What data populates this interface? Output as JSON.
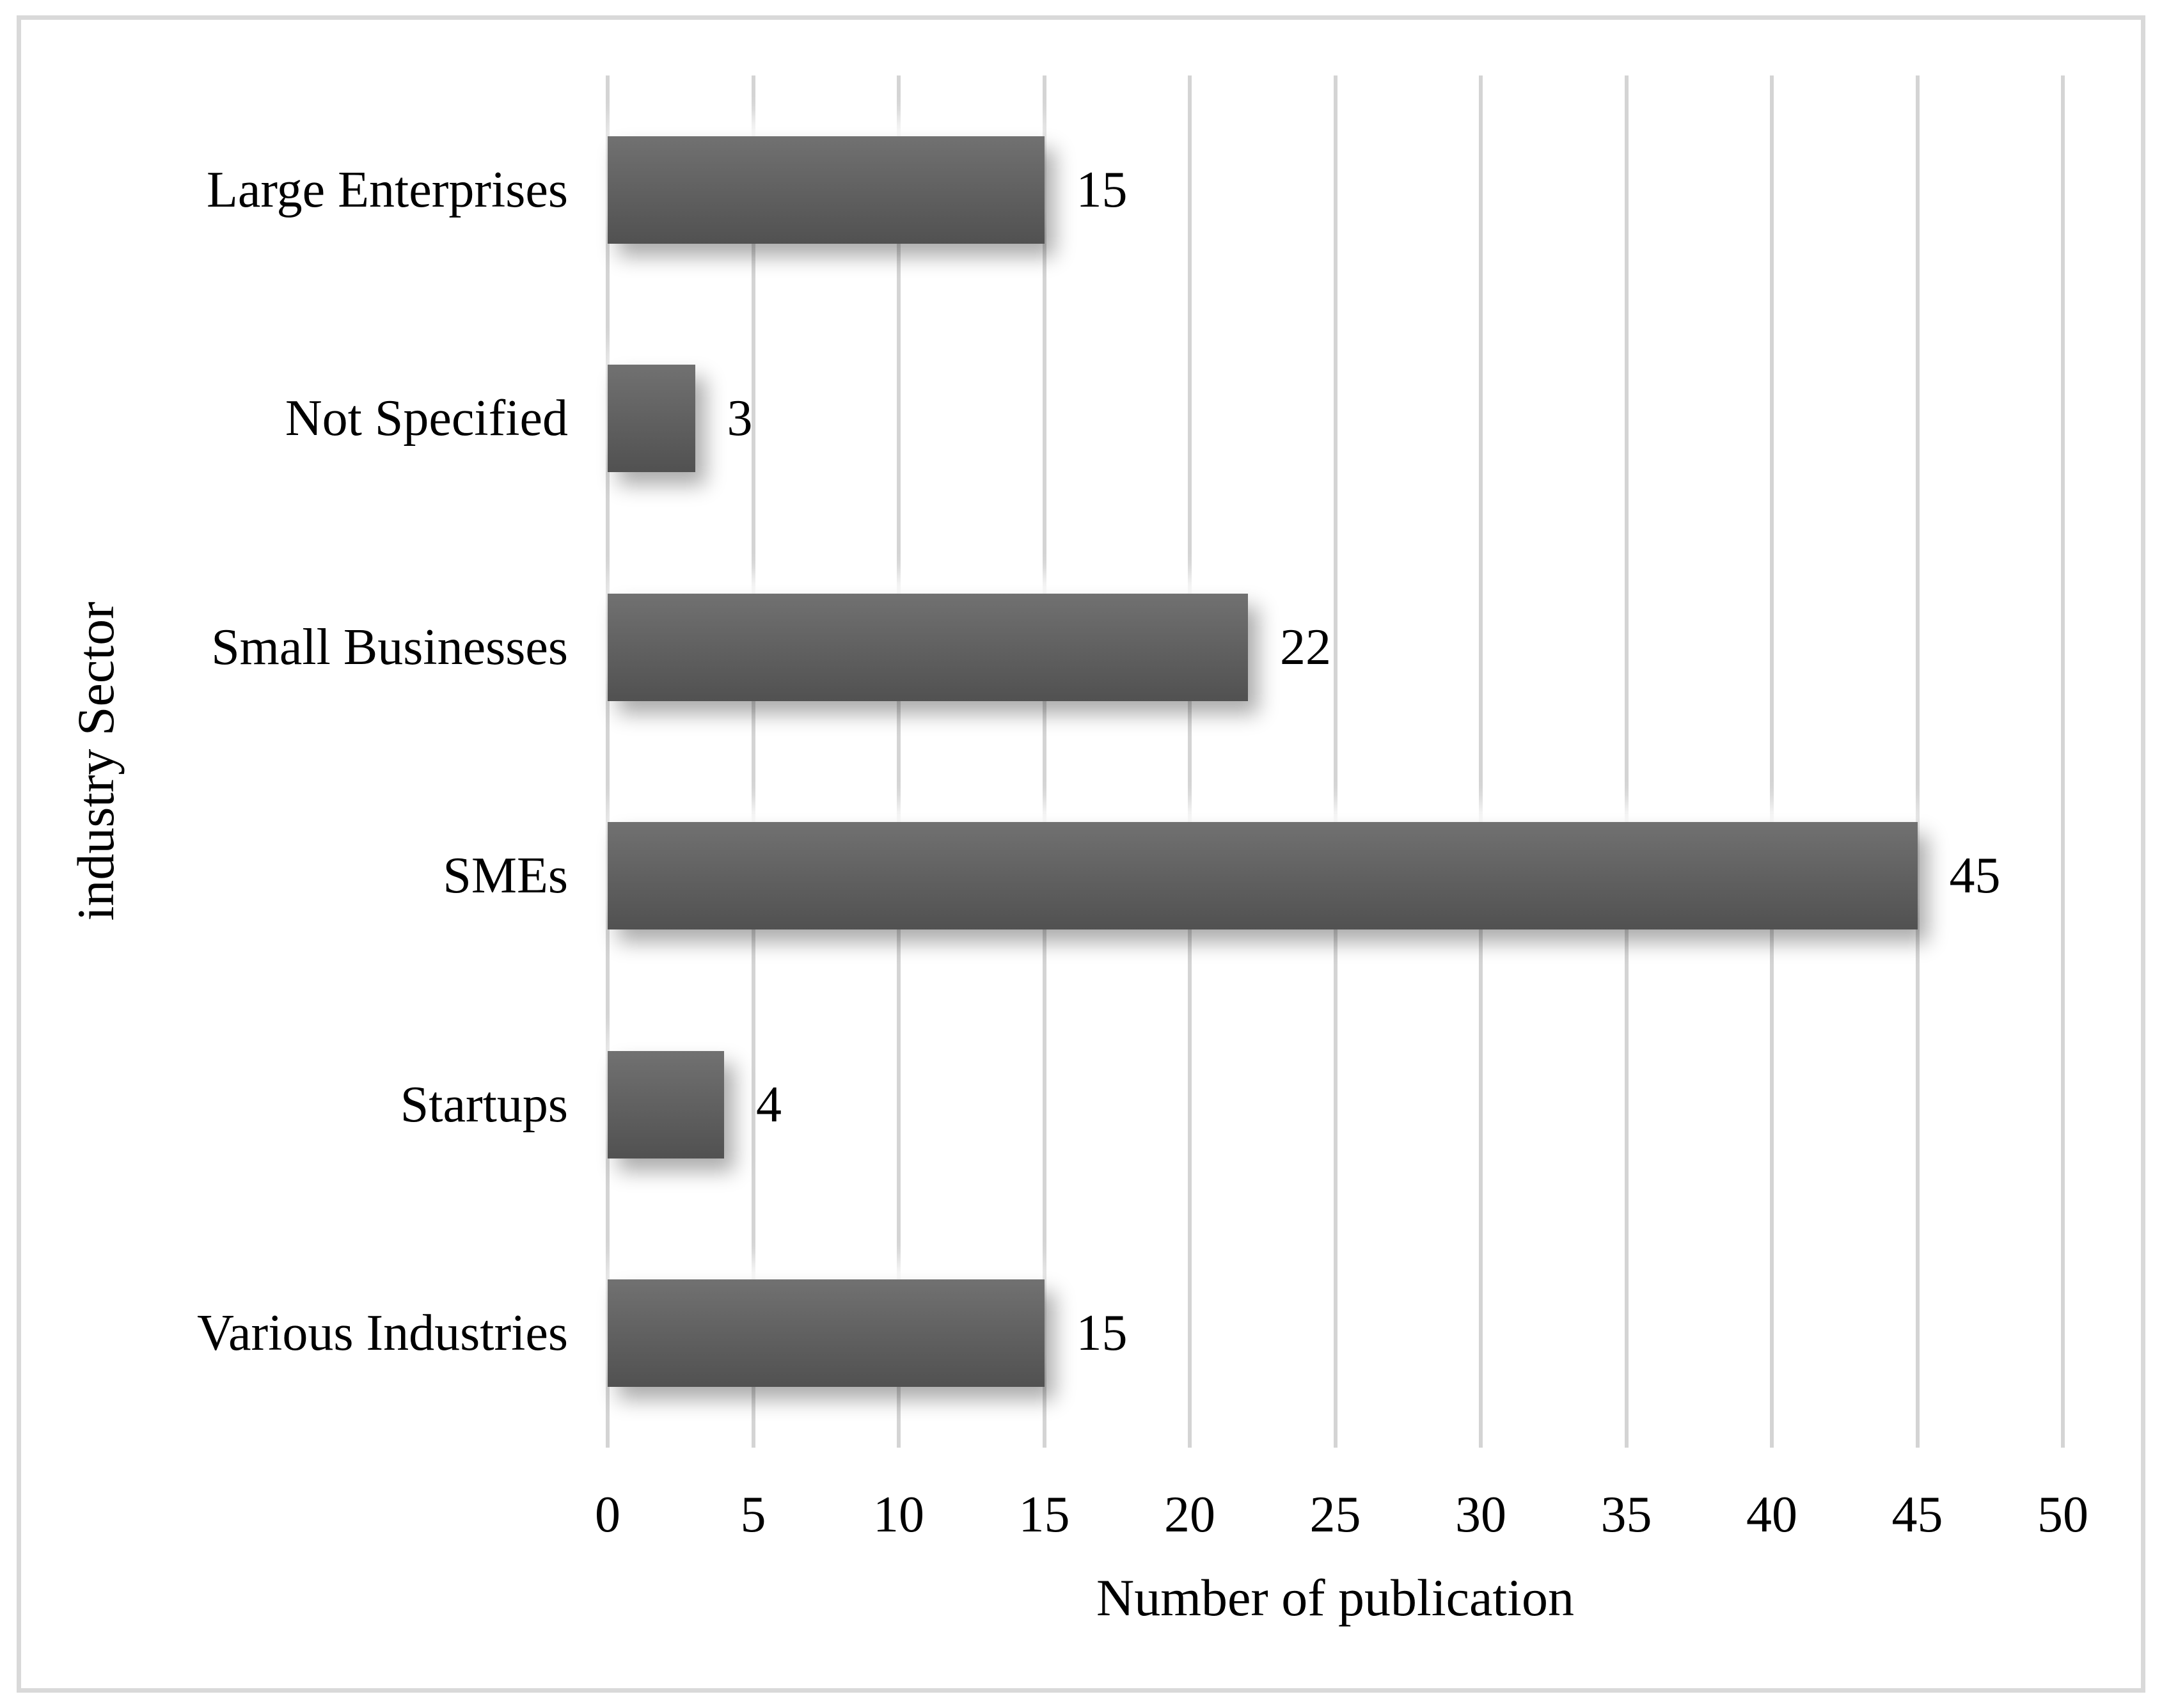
{
  "chart_data": {
    "type": "bar",
    "orientation": "horizontal",
    "categories": [
      "Large Enterprises",
      "Not Specified",
      "Small Businesses",
      "SMEs",
      "Startups",
      "Various Industries"
    ],
    "values": [
      15,
      3,
      22,
      45,
      4,
      15
    ],
    "data_labels": [
      15,
      3,
      22,
      45,
      4,
      15
    ],
    "title": "",
    "xlabel": "Number of publication",
    "ylabel": "industry Sector",
    "xlim": [
      0,
      50
    ],
    "xticks": [
      0,
      5,
      10,
      15,
      20,
      25,
      30,
      35,
      40,
      45,
      50
    ],
    "grid": "vertical",
    "legend": "none",
    "bar_color_top": "#717171",
    "bar_color_bottom": "#515151",
    "gridline_color": "#d4d4d4",
    "frame_color": "#d9d9d9",
    "text_color": "#000000",
    "background_color": "#ffffff"
  }
}
